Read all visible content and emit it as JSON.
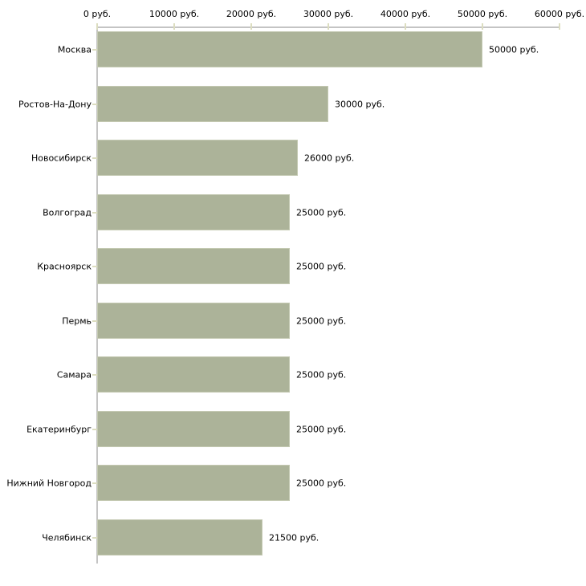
{
  "chart_data": {
    "type": "bar",
    "orientation": "horizontal",
    "title": "",
    "xlabel": "",
    "ylabel": "",
    "categories": [
      "Москва",
      "Ростов-На-Дону",
      "Новосибирск",
      "Волгоград",
      "Красноярск",
      "Пермь",
      "Самара",
      "Екатеринбург",
      "Нижний Новгород",
      "Челябинск"
    ],
    "values": [
      50000,
      30000,
      26000,
      25000,
      25000,
      25000,
      25000,
      25000,
      25000,
      21500
    ],
    "value_labels": [
      "50000 руб.",
      "30000 руб.",
      "26000 руб.",
      "25000 руб.",
      "25000 руб.",
      "25000 руб.",
      "25000 руб.",
      "25000 руб.",
      "25000 руб.",
      "21500 руб."
    ],
    "x_ticks": [
      0,
      10000,
      20000,
      30000,
      40000,
      50000,
      60000
    ],
    "x_tick_labels": [
      "0 руб.",
      "10000 руб.",
      "20000 руб.",
      "30000 руб.",
      "40000 руб.",
      "50000 руб.",
      "60000 руб."
    ],
    "xlim": [
      0,
      60000
    ],
    "x_axis_position": "top",
    "grid": false,
    "legend": false,
    "colors": {
      "bar_fill": "#acb399",
      "bar_border": "#c4c9b2",
      "axis_line": "#c4c4c4",
      "tick_mark": "#dcddc0",
      "text": "#000000",
      "background": "#ffffff"
    }
  }
}
